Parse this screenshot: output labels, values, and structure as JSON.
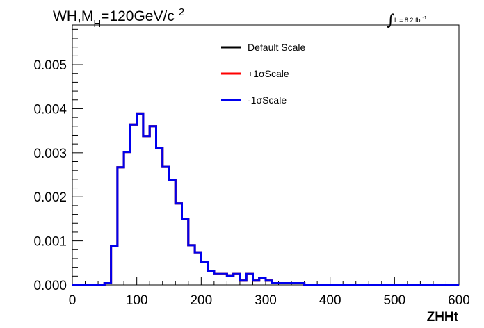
{
  "chart_data": {
    "type": "line",
    "title_parts": {
      "main": "WH,M",
      "sub": "H",
      "rest": "=120GeV/c",
      "sup": "2"
    },
    "luminosity": {
      "integral": "∫",
      "text": "L = 8.2 fb",
      "sup": "-1"
    },
    "xlabel": "ZHHt",
    "ylabel": "",
    "xlim": [
      0,
      600
    ],
    "ylim": [
      0,
      0.0059
    ],
    "x_ticks": [
      "0",
      "100",
      "200",
      "300",
      "400",
      "500",
      "600"
    ],
    "y_ticks": [
      "0.000",
      "0.001",
      "0.002",
      "0.003",
      "0.004",
      "0.005"
    ],
    "grid": false,
    "legend_position": "top-center",
    "bin_edges": [
      0,
      10,
      20,
      30,
      40,
      50,
      60,
      70,
      80,
      90,
      100,
      110,
      120,
      130,
      140,
      150,
      160,
      170,
      180,
      190,
      200,
      210,
      220,
      230,
      240,
      250,
      260,
      270,
      280,
      290,
      300,
      310,
      320,
      330,
      340,
      350,
      360,
      370,
      380,
      390,
      400,
      410,
      420,
      430,
      440,
      450,
      460,
      470,
      480,
      490,
      500,
      510,
      520,
      530,
      540,
      550,
      560,
      570,
      580,
      590,
      600
    ],
    "series": [
      {
        "name": "Default Scale",
        "color": "#000000",
        "values": [
          0,
          0,
          0,
          0,
          0,
          4e-05,
          0.00088,
          0.00267,
          0.00302,
          0.00364,
          0.00389,
          0.00338,
          0.0036,
          0.00311,
          0.00268,
          0.00239,
          0.00185,
          0.0015,
          0.0009,
          0.00074,
          0.00052,
          0.00032,
          0.00025,
          0.00025,
          0.0002,
          0.00025,
          0.0001,
          0.00025,
          0.0001,
          0.00015,
          0.0001,
          4e-05,
          4e-05,
          4e-05,
          4e-05,
          4e-05,
          0,
          0,
          0,
          0,
          0,
          0,
          0,
          0,
          0,
          0,
          0,
          0,
          0,
          0,
          0,
          0,
          0,
          0,
          0,
          0,
          0,
          0,
          0,
          0
        ]
      },
      {
        "name": "+1σScale",
        "color": "#ff0000",
        "values": [
          0,
          0,
          0,
          0,
          0,
          4e-05,
          0.00088,
          0.00267,
          0.00302,
          0.00364,
          0.00389,
          0.00338,
          0.0036,
          0.00311,
          0.00268,
          0.00239,
          0.00185,
          0.0015,
          0.0009,
          0.00074,
          0.00052,
          0.00032,
          0.00025,
          0.00025,
          0.0002,
          0.00025,
          0.0001,
          0.00025,
          0.0001,
          0.00015,
          0.0001,
          4e-05,
          4e-05,
          4e-05,
          4e-05,
          4e-05,
          0,
          0,
          0,
          0,
          0,
          0,
          0,
          0,
          0,
          0,
          0,
          0,
          0,
          0,
          0,
          0,
          0,
          0,
          0,
          0,
          0,
          0,
          0,
          0
        ]
      },
      {
        "name": "-1σScale",
        "color": "#0000ee",
        "values": [
          0,
          0,
          0,
          0,
          0,
          4e-05,
          0.00088,
          0.00267,
          0.00302,
          0.00364,
          0.00389,
          0.00338,
          0.0036,
          0.00311,
          0.00268,
          0.00239,
          0.00185,
          0.0015,
          0.0009,
          0.00074,
          0.00052,
          0.00032,
          0.00025,
          0.00025,
          0.0002,
          0.00025,
          0.0001,
          0.00025,
          0.0001,
          0.00015,
          0.0001,
          4e-05,
          4e-05,
          4e-05,
          4e-05,
          4e-05,
          0,
          0,
          0,
          0,
          0,
          0,
          0,
          0,
          0,
          0,
          0,
          0,
          0,
          0,
          0,
          0,
          0,
          0,
          0,
          0,
          0,
          0,
          0,
          0
        ]
      }
    ]
  }
}
